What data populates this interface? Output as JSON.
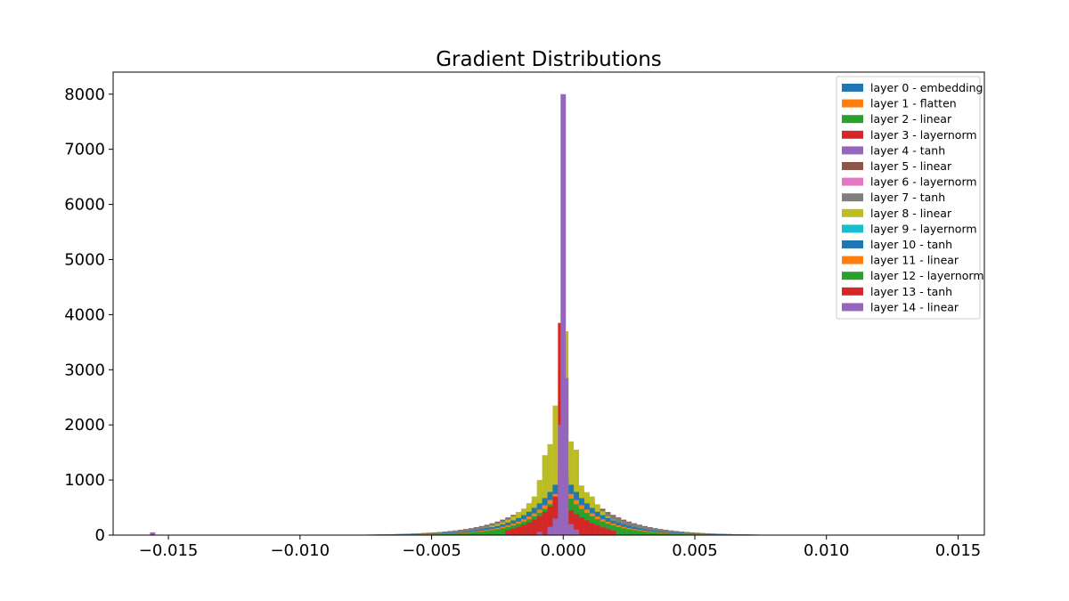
{
  "chart_data": {
    "type": "histogram",
    "title": "Gradient Distributions",
    "xlabel": "",
    "ylabel": "",
    "xlim": [
      -0.0171,
      0.016
    ],
    "ylim": [
      0,
      8400
    ],
    "x_ticks": [
      -0.015,
      -0.01,
      -0.005,
      0.0,
      0.005,
      0.01,
      0.015
    ],
    "x_tick_labels": [
      "−0.015",
      "−0.010",
      "−0.005",
      "0.000",
      "0.005",
      "0.010",
      "0.015"
    ],
    "y_ticks": [
      0,
      1000,
      2000,
      3000,
      4000,
      5000,
      6000,
      7000,
      8000
    ],
    "y_tick_labels": [
      "0",
      "1000",
      "2000",
      "3000",
      "4000",
      "5000",
      "6000",
      "7000",
      "8000"
    ],
    "grid": false,
    "legend_position": "top-right",
    "series": [
      {
        "name": "layer 0 - embedding",
        "color": "#1f77b4",
        "kind": "shape",
        "amp": 1100,
        "scale": 0.00135,
        "width": 0.0002
      },
      {
        "name": "layer 1 - flatten",
        "color": "#ff7f0e",
        "kind": "shape",
        "amp": 1050,
        "scale": 0.00135,
        "width": 0.0002
      },
      {
        "name": "layer 2 - linear",
        "color": "#2ca02c",
        "kind": "shape",
        "amp": 900,
        "scale": 0.00125,
        "width": 0.0002
      },
      {
        "name": "layer 3 - layernorm",
        "color": "#d62728",
        "kind": "shape",
        "amp": 800,
        "scale": 0.0011,
        "width": 0.0002
      },
      {
        "name": "layer 4 - tanh",
        "color": "#9467bd",
        "kind": "shape",
        "amp": 750,
        "scale": 0.00105,
        "width": 0.0002
      },
      {
        "name": "layer 5 - linear",
        "color": "#8c564b",
        "kind": "shape",
        "amp": 1300,
        "scale": 0.0015,
        "width": 0.0002
      },
      {
        "name": "layer 6 - layernorm",
        "color": "#e377c2",
        "kind": "shape",
        "amp": 1200,
        "scale": 0.00145,
        "width": 0.0002
      },
      {
        "name": "layer 7 - tanh",
        "color": "#7f7f7f",
        "kind": "shape",
        "amp": 1250,
        "scale": 0.00148,
        "width": 0.0002
      },
      {
        "name": "layer 8 - linear",
        "color": "#bcbd22",
        "kind": "bars",
        "bars": [
          {
            "x": -0.0027,
            "w": 0.0002,
            "h": 170
          },
          {
            "x": -0.0025,
            "w": 0.0002,
            "h": 200
          },
          {
            "x": -0.0023,
            "w": 0.0002,
            "h": 230
          },
          {
            "x": -0.0021,
            "w": 0.0002,
            "h": 280
          },
          {
            "x": -0.0019,
            "w": 0.0002,
            "h": 340
          },
          {
            "x": -0.0017,
            "w": 0.0002,
            "h": 420
          },
          {
            "x": -0.0015,
            "w": 0.0002,
            "h": 480
          },
          {
            "x": -0.0013,
            "w": 0.0002,
            "h": 580
          },
          {
            "x": -0.0011,
            "w": 0.0002,
            "h": 700
          },
          {
            "x": -0.0009,
            "w": 0.0002,
            "h": 1000
          },
          {
            "x": -0.0007,
            "w": 0.0002,
            "h": 1450
          },
          {
            "x": -0.0005,
            "w": 0.0002,
            "h": 1650
          },
          {
            "x": -0.0003,
            "w": 0.0002,
            "h": 2350
          },
          {
            "x": -0.0001,
            "w": 0.0002,
            "h": 3000
          },
          {
            "x": 0.0001,
            "w": 0.0002,
            "h": 3700
          },
          {
            "x": 0.0003,
            "w": 0.0002,
            "h": 1700
          },
          {
            "x": 0.0005,
            "w": 0.0002,
            "h": 1550
          },
          {
            "x": 0.0007,
            "w": 0.0002,
            "h": 900
          },
          {
            "x": 0.0009,
            "w": 0.0002,
            "h": 780
          },
          {
            "x": 0.0011,
            "w": 0.0002,
            "h": 700
          },
          {
            "x": 0.0013,
            "w": 0.0002,
            "h": 560
          },
          {
            "x": 0.0015,
            "w": 0.0002,
            "h": 430
          },
          {
            "x": 0.0017,
            "w": 0.0002,
            "h": 340
          },
          {
            "x": 0.0019,
            "w": 0.0002,
            "h": 280
          },
          {
            "x": 0.0021,
            "w": 0.0002,
            "h": 220
          },
          {
            "x": 0.0023,
            "w": 0.0002,
            "h": 190
          },
          {
            "x": 0.0025,
            "w": 0.0002,
            "h": 160
          }
        ]
      },
      {
        "name": "layer 9 - layernorm",
        "color": "#17becf",
        "kind": "shape",
        "amp": 1000,
        "scale": 0.0013,
        "width": 0.0002
      },
      {
        "name": "layer 10 - tanh",
        "color": "#1f77b4",
        "kind": "shape",
        "amp": 1150,
        "scale": 0.0013,
        "width": 0.0002
      },
      {
        "name": "layer 11 - linear",
        "color": "#ff7f0e",
        "kind": "shape",
        "amp": 950,
        "scale": 0.00125,
        "width": 0.0002
      },
      {
        "name": "layer 12 - layernorm",
        "color": "#2ca02c",
        "kind": "shape",
        "amp": 850,
        "scale": 0.0012,
        "width": 0.0002
      },
      {
        "name": "layer 13 - tanh",
        "color": "#d62728",
        "kind": "bars",
        "bars": [
          {
            "x": -0.0021,
            "w": 0.0002,
            "h": 90
          },
          {
            "x": -0.0019,
            "w": 0.0002,
            "h": 120
          },
          {
            "x": -0.0017,
            "w": 0.0002,
            "h": 150
          },
          {
            "x": -0.0015,
            "w": 0.0002,
            "h": 190
          },
          {
            "x": -0.0013,
            "w": 0.0002,
            "h": 230
          },
          {
            "x": -0.0011,
            "w": 0.0002,
            "h": 280
          },
          {
            "x": -0.0009,
            "w": 0.0002,
            "h": 340
          },
          {
            "x": -0.0007,
            "w": 0.0002,
            "h": 420
          },
          {
            "x": -0.0005,
            "w": 0.0002,
            "h": 520
          },
          {
            "x": -0.0003,
            "w": 0.0002,
            "h": 700
          },
          {
            "x": -0.0001,
            "w": 0.0002,
            "h": 3850
          },
          {
            "x": 0.0001,
            "w": 0.0002,
            "h": 650
          },
          {
            "x": 0.0003,
            "w": 0.0002,
            "h": 450
          },
          {
            "x": 0.0005,
            "w": 0.0002,
            "h": 380
          },
          {
            "x": 0.0007,
            "w": 0.0002,
            "h": 320
          },
          {
            "x": 0.0009,
            "w": 0.0002,
            "h": 270
          },
          {
            "x": 0.0011,
            "w": 0.0002,
            "h": 220
          },
          {
            "x": 0.0013,
            "w": 0.0002,
            "h": 180
          },
          {
            "x": 0.0015,
            "w": 0.0002,
            "h": 140
          },
          {
            "x": 0.0017,
            "w": 0.0002,
            "h": 110
          },
          {
            "x": 0.0019,
            "w": 0.0002,
            "h": 80
          }
        ]
      },
      {
        "name": "layer 14 - linear",
        "color": "#9467bd",
        "kind": "bars",
        "bars": [
          {
            "x": -0.0156,
            "w": 0.0002,
            "h": 50
          },
          {
            "x": -0.0009,
            "w": 0.0002,
            "h": 60
          },
          {
            "x": -0.0005,
            "w": 0.0002,
            "h": 150
          },
          {
            "x": -0.0003,
            "w": 0.0002,
            "h": 300
          },
          {
            "x": -0.0001,
            "w": 0.0002,
            "h": 2000
          },
          {
            "x": 0.0,
            "w": 0.0002,
            "h": 8000
          },
          {
            "x": 0.0001,
            "w": 0.0002,
            "h": 2850
          },
          {
            "x": 0.0003,
            "w": 0.0002,
            "h": 200
          },
          {
            "x": 0.0005,
            "w": 0.0002,
            "h": 100
          }
        ]
      }
    ]
  }
}
